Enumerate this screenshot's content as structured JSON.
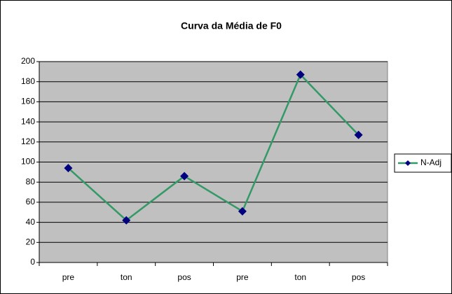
{
  "chart_data": {
    "type": "line",
    "title": "Curva da Média de F0",
    "categories": [
      "pre",
      "ton",
      "pos",
      "pre",
      "ton",
      "pos"
    ],
    "series": [
      {
        "name": "N-Adj",
        "color": "#339966",
        "marker_color": "#000080",
        "values": [
          94,
          42,
          86,
          51,
          187,
          127
        ]
      }
    ],
    "ylim": [
      0,
      200
    ],
    "yticks": [
      0,
      20,
      40,
      60,
      80,
      100,
      120,
      140,
      160,
      180,
      200
    ],
    "grid": true,
    "legend": "right"
  }
}
